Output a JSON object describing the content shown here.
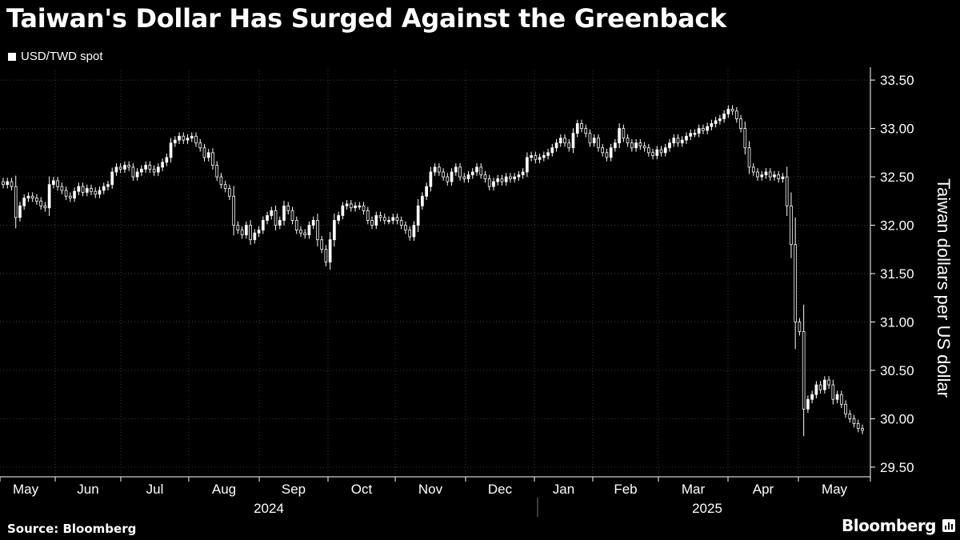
{
  "header": {
    "title": "Taiwan's Dollar Has Surged Against the Greenback"
  },
  "legend": {
    "label": "USD/TWD spot",
    "color": "#ffffff"
  },
  "footer": {
    "source": "Source: Bloomberg",
    "brand": "Bloomberg"
  },
  "chart_data": {
    "type": "candlestick",
    "ylabel": "Taiwan dollars per US dollar",
    "ylim": [
      29.4,
      33.6
    ],
    "y_ticks": [
      "33.50",
      "33.00",
      "32.50",
      "32.00",
      "31.50",
      "31.00",
      "30.50",
      "30.00",
      "29.50"
    ],
    "y_tick_values": [
      33.5,
      33.0,
      32.5,
      32.0,
      31.5,
      31.0,
      30.5,
      30.0,
      29.5
    ],
    "months": [
      "May",
      "Jun",
      "Jul",
      "Aug",
      "Sep",
      "Oct",
      "Nov",
      "Dec",
      "Jan",
      "Feb",
      "Mar",
      "Apr",
      "May"
    ],
    "years": [
      "2024",
      "2025"
    ],
    "grid": true,
    "legend_position": "top-left",
    "series": [
      {
        "name": "USD/TWD spot",
        "color": "#ffffff",
        "close": [
          32.42,
          32.45,
          32.4,
          32.08,
          32.2,
          32.28,
          32.3,
          32.28,
          32.25,
          32.2,
          32.18,
          32.42,
          32.46,
          32.4,
          32.36,
          32.3,
          32.28,
          32.35,
          32.4,
          32.34,
          32.38,
          32.35,
          32.32,
          32.36,
          32.4,
          32.42,
          32.55,
          32.6,
          32.58,
          32.62,
          32.6,
          32.5,
          32.55,
          32.58,
          32.62,
          32.58,
          32.55,
          32.6,
          32.65,
          32.7,
          32.85,
          32.88,
          32.92,
          32.88,
          32.9,
          32.92,
          32.85,
          32.8,
          32.7,
          32.75,
          32.62,
          32.5,
          32.42,
          32.38,
          32.3,
          32.0,
          31.95,
          31.9,
          32.0,
          31.85,
          31.92,
          31.95,
          32.05,
          32.1,
          32.15,
          32.0,
          32.05,
          32.2,
          32.15,
          32.05,
          31.95,
          31.92,
          31.9,
          32.0,
          32.05,
          31.85,
          31.75,
          31.62,
          31.85,
          32.05,
          32.1,
          32.2,
          32.22,
          32.18,
          32.2,
          32.2,
          32.15,
          32.05,
          32.0,
          32.1,
          32.08,
          32.05,
          32.05,
          32.08,
          32.05,
          32.0,
          31.95,
          31.88,
          32.0,
          32.2,
          32.3,
          32.4,
          32.55,
          32.6,
          32.55,
          32.5,
          32.45,
          32.55,
          32.6,
          32.5,
          32.48,
          32.52,
          32.55,
          32.6,
          32.52,
          32.48,
          32.4,
          32.45,
          32.48,
          32.45,
          32.5,
          32.48,
          32.5,
          32.52,
          32.55,
          32.7,
          32.72,
          32.68,
          32.7,
          32.72,
          32.75,
          32.8,
          32.85,
          32.9,
          32.85,
          32.8,
          32.95,
          33.05,
          33.0,
          32.95,
          32.85,
          32.9,
          32.8,
          32.75,
          32.7,
          32.8,
          32.85,
          33.0,
          32.9,
          32.85,
          32.8,
          32.85,
          32.82,
          32.8,
          32.75,
          32.72,
          32.78,
          32.75,
          32.8,
          32.85,
          32.9,
          32.85,
          32.88,
          32.92,
          32.95,
          32.95,
          33.0,
          32.98,
          33.02,
          33.05,
          33.08,
          33.1,
          33.15,
          33.2,
          33.18,
          33.1,
          33.0,
          32.8,
          32.6,
          32.55,
          32.5,
          32.52,
          32.55,
          32.5,
          32.52,
          32.48,
          32.5,
          32.2,
          31.8,
          31.0,
          30.9,
          30.1,
          30.2,
          30.25,
          30.35,
          30.3,
          30.4,
          30.35,
          30.2,
          30.25,
          30.15,
          30.05,
          30.0,
          29.95,
          29.9,
          29.88
        ]
      }
    ]
  }
}
